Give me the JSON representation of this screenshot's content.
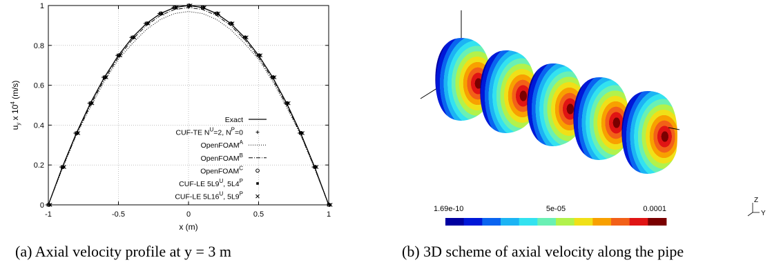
{
  "chart_data": [
    {
      "type": "line",
      "caption": "(a) Axial velocity profile at y = 3 m",
      "xlabel": "x (m)",
      "ylabel_parts": [
        "u",
        "y",
        " x 10",
        "4",
        " (m/s)"
      ],
      "xlim": [
        -1,
        1
      ],
      "ylim": [
        0,
        1
      ],
      "x_ticks": [
        "-1",
        "-0.5",
        "0",
        "0.5",
        "1"
      ],
      "y_ticks": [
        "0",
        "0.2",
        "0.4",
        "0.6",
        "0.8",
        "1"
      ],
      "grid": true,
      "legend_position": "bottom-center",
      "legend": [
        {
          "parts": [
            "Exact"
          ]
        },
        {
          "parts": [
            "CUF-TE N",
            "U",
            "=2, N",
            "P",
            "=0"
          ]
        },
        {
          "parts": [
            "OpenFOAM",
            "A"
          ]
        },
        {
          "parts": [
            "OpenFOAM",
            "B"
          ]
        },
        {
          "parts": [
            "OpenFOAM",
            "C"
          ]
        },
        {
          "parts": [
            "CUF-LE 5L9",
            "U",
            ", 5L4",
            "P"
          ]
        },
        {
          "parts": [
            "CUF-LE 5L16",
            "U",
            ", 5L9",
            "P"
          ]
        }
      ],
      "x": [
        -1,
        -0.9,
        -0.8,
        -0.7,
        -0.6,
        -0.5,
        -0.4,
        -0.3,
        -0.2,
        -0.1,
        0,
        0.1,
        0.2,
        0.3,
        0.4,
        0.5,
        0.6,
        0.7,
        0.8,
        0.9,
        1
      ],
      "series": [
        {
          "name": "Exact",
          "style": "solid",
          "values": [
            0,
            0.19,
            0.36,
            0.51,
            0.64,
            0.75,
            0.84,
            0.91,
            0.96,
            0.99,
            1.0,
            0.99,
            0.96,
            0.91,
            0.84,
            0.75,
            0.64,
            0.51,
            0.36,
            0.19,
            0
          ]
        },
        {
          "name": "CUF-TE",
          "style": "plus",
          "values": [
            0,
            0.19,
            0.36,
            0.51,
            0.64,
            0.75,
            0.84,
            0.91,
            0.96,
            0.99,
            1.0,
            0.99,
            0.96,
            0.91,
            0.84,
            0.75,
            0.64,
            0.51,
            0.36,
            0.19,
            0
          ]
        },
        {
          "name": "OpenFOAM_A",
          "style": "dotted",
          "values": [
            0,
            0.18,
            0.35,
            0.49,
            0.62,
            0.73,
            0.81,
            0.88,
            0.93,
            0.96,
            0.97,
            0.96,
            0.93,
            0.88,
            0.81,
            0.73,
            0.62,
            0.49,
            0.35,
            0.18,
            0
          ]
        },
        {
          "name": "OpenFOAM_B",
          "style": "dashdot",
          "values": [
            0,
            0.185,
            0.355,
            0.5,
            0.63,
            0.74,
            0.83,
            0.9,
            0.95,
            0.98,
            0.99,
            0.98,
            0.95,
            0.9,
            0.83,
            0.74,
            0.63,
            0.5,
            0.355,
            0.185,
            0
          ]
        },
        {
          "name": "OpenFOAM_C",
          "style": "circle",
          "values": [
            0,
            0.19,
            0.36,
            0.51,
            0.64,
            0.75,
            0.84,
            0.91,
            0.96,
            0.99,
            1.0,
            0.99,
            0.96,
            0.91,
            0.84,
            0.75,
            0.64,
            0.51,
            0.36,
            0.19,
            0
          ]
        },
        {
          "name": "CUF-LE 5L9",
          "style": "square",
          "values": [
            0,
            0.19,
            0.36,
            0.51,
            0.64,
            0.75,
            0.84,
            0.91,
            0.96,
            0.99,
            1.0,
            0.99,
            0.96,
            0.91,
            0.84,
            0.75,
            0.64,
            0.51,
            0.36,
            0.19,
            0
          ]
        },
        {
          "name": "CUF-LE 5L16",
          "style": "cross",
          "values": [
            0,
            0.19,
            0.36,
            0.51,
            0.64,
            0.75,
            0.84,
            0.91,
            0.96,
            0.99,
            1.0,
            0.99,
            0.96,
            0.91,
            0.84,
            0.75,
            0.64,
            0.51,
            0.36,
            0.19,
            0
          ]
        }
      ]
    },
    {
      "type": "heatmap",
      "caption": "(b) 3D scheme of axial velocity along the pipe",
      "colorbar_labels": [
        "1.69e-10",
        "5e-05",
        "0.0001"
      ],
      "colorbar_range": [
        1.69e-10,
        0.0001
      ],
      "colorbar_colors": [
        "#0000a0",
        "#0018d8",
        "#0a64f0",
        "#1cb4f4",
        "#33e2f0",
        "#6af0b4",
        "#b2f24c",
        "#f0e018",
        "#f8a000",
        "#f26018",
        "#e01414",
        "#7a0000"
      ],
      "axis_labels": [
        "Z",
        "Y"
      ],
      "sections": 5
    }
  ]
}
